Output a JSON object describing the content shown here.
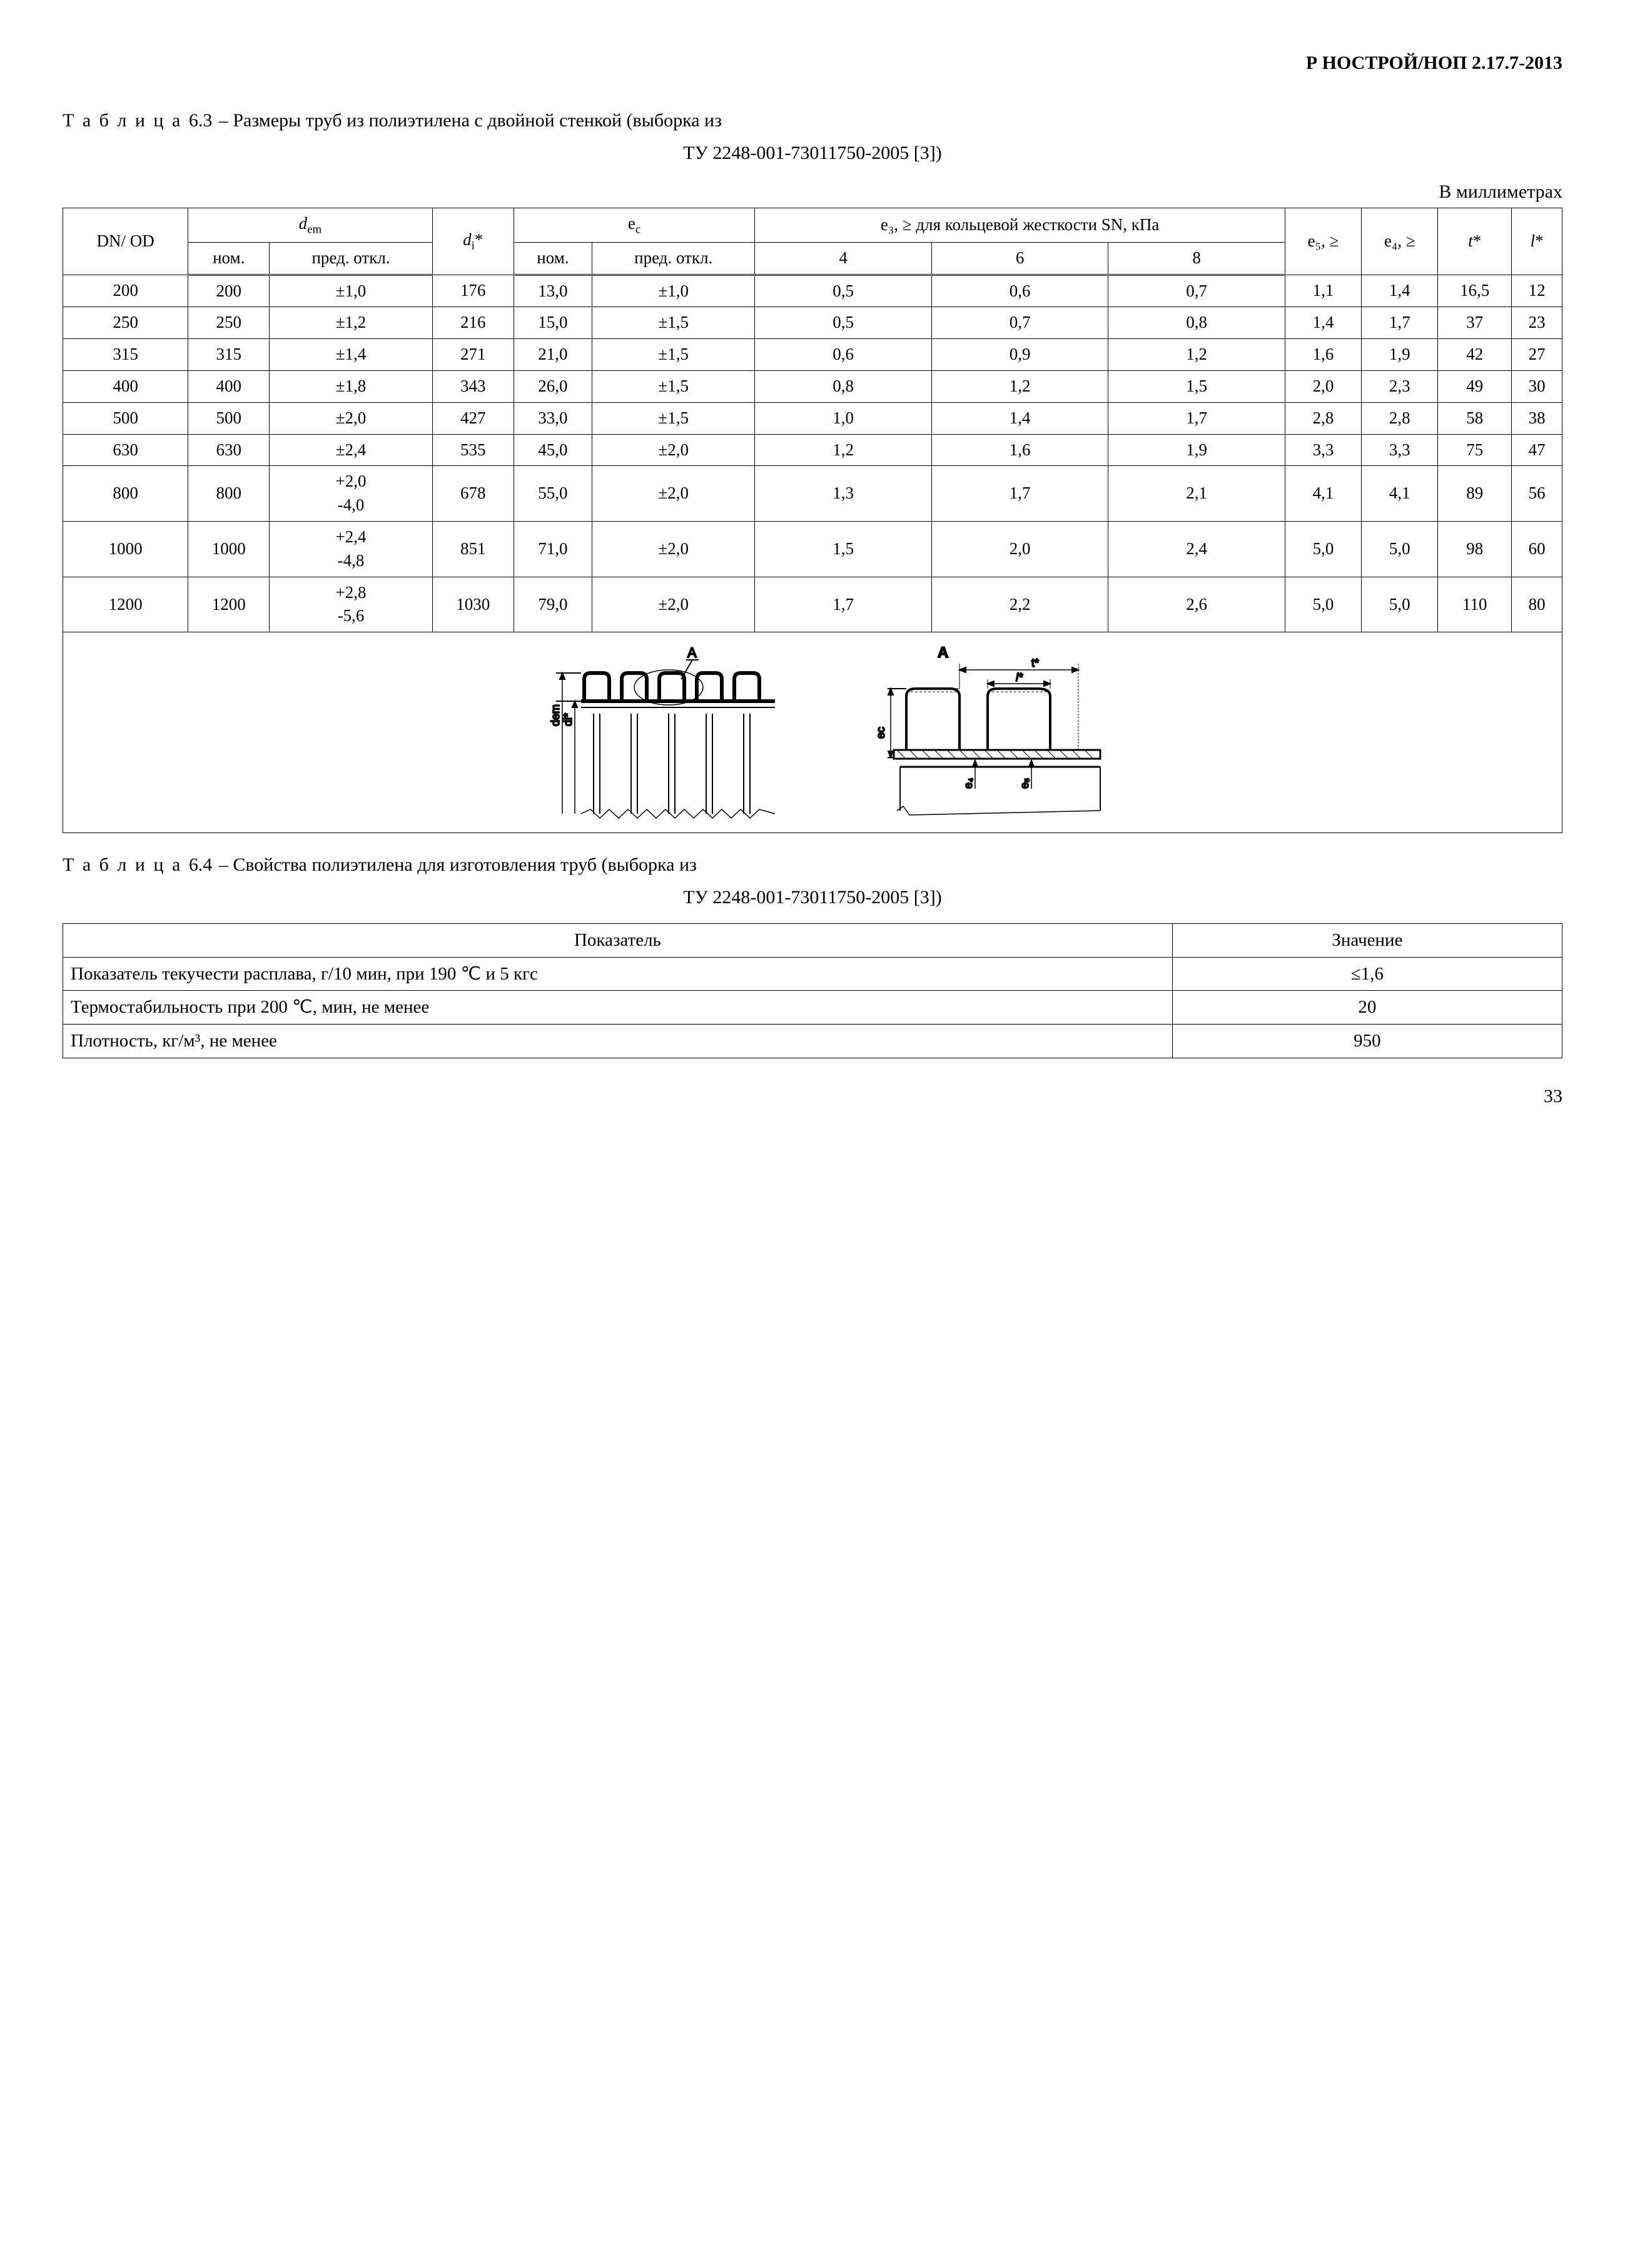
{
  "doc_code": "Р НОСТРОЙ/НОП 2.17.7-2013",
  "table63": {
    "caption_prefix": "Т а б л и ц а",
    "caption_num": "6.3",
    "caption_text": "– Размеры труб из полиэтилена с двойной стенкой (выборка из",
    "caption_line2": "ТУ 2248-001-73011750-2005 [3])",
    "units": "В миллиметрах",
    "headers": {
      "dn_od": "DN/ OD",
      "dem": "d",
      "dem_sub": "em",
      "di": "d",
      "di_sub": "i",
      "ec": "e",
      "ec_sub": "c",
      "e3_text": "e₃, ≥ для кольцевой жесткости SN, кПа",
      "e5": "e₅, ≥",
      "e4": "e₄, ≥",
      "t": "t",
      "l": "l",
      "nom": "ном.",
      "pred": "пред. откл.",
      "sn4": "4",
      "sn6": "6",
      "sn8": "8"
    },
    "rows": [
      {
        "dn": "200",
        "dem_nom": "200",
        "dem_pred": "±1,0",
        "di": "176",
        "ec_nom": "13,0",
        "ec_pred": "±1,0",
        "e3_4": "0,5",
        "e3_6": "0,6",
        "e3_8": "0,7",
        "e5": "1,1",
        "e4": "1,4",
        "t": "16,5",
        "l": "12"
      },
      {
        "dn": "250",
        "dem_nom": "250",
        "dem_pred": "±1,2",
        "di": "216",
        "ec_nom": "15,0",
        "ec_pred": "±1,5",
        "e3_4": "0,5",
        "e3_6": "0,7",
        "e3_8": "0,8",
        "e5": "1,4",
        "e4": "1,7",
        "t": "37",
        "l": "23"
      },
      {
        "dn": "315",
        "dem_nom": "315",
        "dem_pred": "±1,4",
        "di": "271",
        "ec_nom": "21,0",
        "ec_pred": "±1,5",
        "e3_4": "0,6",
        "e3_6": "0,9",
        "e3_8": "1,2",
        "e5": "1,6",
        "e4": "1,9",
        "t": "42",
        "l": "27"
      },
      {
        "dn": "400",
        "dem_nom": "400",
        "dem_pred": "±1,8",
        "di": "343",
        "ec_nom": "26,0",
        "ec_pred": "±1,5",
        "e3_4": "0,8",
        "e3_6": "1,2",
        "e3_8": "1,5",
        "e5": "2,0",
        "e4": "2,3",
        "t": "49",
        "l": "30"
      },
      {
        "dn": "500",
        "dem_nom": "500",
        "dem_pred": "±2,0",
        "di": "427",
        "ec_nom": "33,0",
        "ec_pred": "±1,5",
        "e3_4": "1,0",
        "e3_6": "1,4",
        "e3_8": "1,7",
        "e5": "2,8",
        "e4": "2,8",
        "t": "58",
        "l": "38"
      },
      {
        "dn": "630",
        "dem_nom": "630",
        "dem_pred": "±2,4",
        "di": "535",
        "ec_nom": "45,0",
        "ec_pred": "±2,0",
        "e3_4": "1,2",
        "e3_6": "1,6",
        "e3_8": "1,9",
        "e5": "3,3",
        "e4": "3,3",
        "t": "75",
        "l": "47"
      },
      {
        "dn": "800",
        "dem_nom": "800",
        "dem_pred": "+2,0\n-4,0",
        "di": "678",
        "ec_nom": "55,0",
        "ec_pred": "±2,0",
        "e3_4": "1,3",
        "e3_6": "1,7",
        "e3_8": "2,1",
        "e5": "4,1",
        "e4": "4,1",
        "t": "89",
        "l": "56"
      },
      {
        "dn": "1000",
        "dem_nom": "1000",
        "dem_pred": "+2,4\n-4,8",
        "di": "851",
        "ec_nom": "71,0",
        "ec_pred": "±2,0",
        "e3_4": "1,5",
        "e3_6": "2,0",
        "e3_8": "2,4",
        "e5": "5,0",
        "e4": "5,0",
        "t": "98",
        "l": "60"
      },
      {
        "dn": "1200",
        "dem_nom": "1200",
        "dem_pred": "+2,8\n-5,6",
        "di": "1030",
        "ec_nom": "79,0",
        "ec_pred": "±2,0",
        "e3_4": "1,7",
        "e3_6": "2,2",
        "e3_8": "2,6",
        "e5": "5,0",
        "e4": "5,0",
        "t": "110",
        "l": "80"
      }
    ],
    "diagram_labels": {
      "A": "A",
      "dem": "dem",
      "di": "di*",
      "ec": "ec",
      "e3": "e3",
      "e4": "e4",
      "e5": "e5",
      "t": "t*",
      "l": "l*"
    }
  },
  "table64": {
    "caption_prefix": "Т а б л и ц а",
    "caption_num": "6.4",
    "caption_text": "– Свойства полиэтилена для изготовления труб (выборка из",
    "caption_line2": "ТУ 2248-001-73011750-2005 [3])",
    "header_param": "Показатель",
    "header_value": "Значение",
    "rows": [
      {
        "param": "Показатель текучести расплава, г/10 мин,  при 190 ℃ и 5 кгс",
        "value": "≤1,6"
      },
      {
        "param": "Термостабильность при 200 ℃, мин, не менее",
        "value": "20"
      },
      {
        "param": "Плотность, кг/м³, не менее",
        "value": "950"
      }
    ]
  },
  "page_number": "33",
  "colors": {
    "text": "#000000",
    "bg": "#ffffff",
    "border": "#000000",
    "diagram_stroke": "#000000",
    "diagram_fill": "#ffffff"
  }
}
